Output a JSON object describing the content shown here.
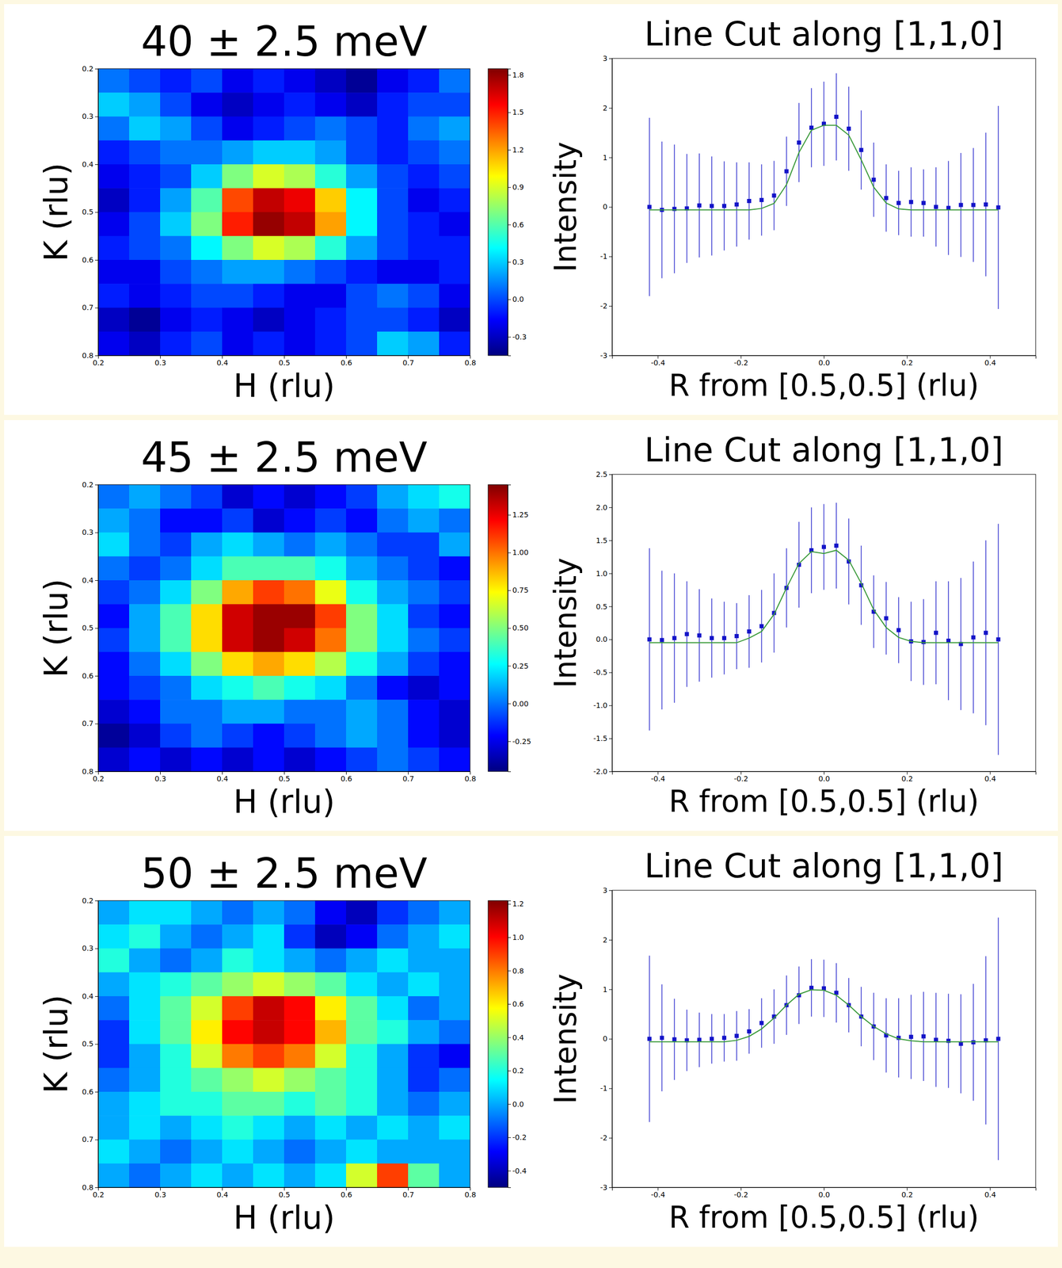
{
  "chart_data": [
    {
      "type": "heatmap",
      "title": "40 ± 2.5 meV",
      "x_label": "H (rlu)",
      "y_label": "K (rlu)",
      "x": [
        0.225,
        0.275,
        0.325,
        0.375,
        0.425,
        0.475,
        0.525,
        0.575,
        0.625,
        0.675,
        0.725,
        0.775
      ],
      "y": [
        0.225,
        0.275,
        0.325,
        0.375,
        0.425,
        0.475,
        0.525,
        0.575,
        0.625,
        0.675,
        0.725,
        0.775
      ],
      "z": [
        [
          0.1,
          0.0,
          -0.1,
          0.0,
          -0.2,
          -0.1,
          -0.2,
          -0.3,
          -0.4,
          -0.2,
          -0.1,
          0.1
        ],
        [
          0.3,
          0.2,
          0.0,
          -0.2,
          -0.3,
          -0.2,
          -0.1,
          -0.2,
          -0.3,
          -0.1,
          0.0,
          0.0
        ],
        [
          0.1,
          0.3,
          0.2,
          0.0,
          -0.2,
          -0.1,
          0.0,
          0.1,
          0.0,
          -0.1,
          0.1,
          0.2
        ],
        [
          -0.1,
          0.0,
          0.1,
          0.1,
          0.2,
          0.3,
          0.3,
          0.2,
          0.0,
          -0.1,
          0.0,
          0.1
        ],
        [
          -0.2,
          -0.1,
          0.0,
          0.3,
          0.7,
          0.9,
          0.8,
          0.5,
          0.2,
          0.0,
          -0.1,
          0.0
        ],
        [
          -0.3,
          -0.1,
          0.2,
          0.6,
          1.4,
          1.7,
          1.6,
          1.1,
          0.4,
          0.0,
          -0.2,
          -0.1
        ],
        [
          -0.2,
          0.0,
          0.3,
          0.7,
          1.5,
          1.8,
          1.7,
          1.2,
          0.4,
          0.0,
          -0.1,
          -0.2
        ],
        [
          -0.1,
          0.0,
          0.1,
          0.4,
          0.7,
          0.9,
          0.8,
          0.5,
          0.2,
          0.0,
          -0.1,
          -0.1
        ],
        [
          -0.2,
          -0.2,
          0.0,
          0.1,
          0.2,
          0.2,
          0.1,
          0.0,
          -0.1,
          -0.2,
          -0.2,
          -0.1
        ],
        [
          -0.1,
          -0.2,
          -0.1,
          0.0,
          0.0,
          -0.1,
          -0.2,
          -0.2,
          0.0,
          0.1,
          0.0,
          -0.2
        ],
        [
          -0.3,
          -0.4,
          -0.2,
          -0.1,
          -0.2,
          -0.3,
          -0.2,
          -0.1,
          0.0,
          0.0,
          -0.1,
          -0.3
        ],
        [
          -0.2,
          -0.3,
          -0.1,
          0.0,
          -0.2,
          -0.1,
          -0.2,
          -0.1,
          0.0,
          0.3,
          0.2,
          -0.1
        ]
      ],
      "xlim": [
        0.2,
        0.8
      ],
      "ylim": [
        0.8,
        0.2
      ],
      "xticks": [
        0.2,
        0.3,
        0.4,
        0.5,
        0.6,
        0.7,
        0.8
      ],
      "yticks": [
        0.2,
        0.3,
        0.4,
        0.5,
        0.6,
        0.7,
        0.8
      ],
      "colorbar_range": [
        -0.45,
        1.85
      ],
      "colorbar_ticks": [
        -0.3,
        {
          "value": 0,
          "label": "0.0"
        },
        0.3,
        0.6,
        0.9,
        1.2,
        1.5,
        1.8
      ]
    },
    {
      "type": "line",
      "title": "Line Cut along [1,1,0]",
      "x_label": "R from [0.5,0.5] (rlu)",
      "y_label": "Intensity",
      "x": [
        -0.42,
        -0.39,
        -0.36,
        -0.33,
        -0.3,
        -0.27,
        -0.24,
        -0.21,
        -0.18,
        -0.15,
        -0.12,
        -0.09,
        -0.06,
        -0.03,
        0,
        0.03,
        0.06,
        0.09,
        0.12,
        0.15,
        0.18,
        0.21,
        0.24,
        0.27,
        0.3,
        0.33,
        0.36,
        0.39,
        0.42
      ],
      "series": [
        {
          "type": "scatter",
          "marker": "square",
          "color": "#1414c8",
          "values": [
            0,
            -0.06,
            -0.04,
            -0.03,
            0.03,
            0.02,
            0.02,
            0.05,
            0.12,
            0.14,
            0.23,
            0.72,
            1.3,
            1.6,
            1.68,
            1.82,
            1.58,
            1.15,
            0.55,
            0.18,
            0.08,
            0.1,
            0.08,
            0,
            -0.02,
            0.04,
            0.04,
            0.05,
            -0.01
          ],
          "errors": [
            1.8,
            1.38,
            1.3,
            1.1,
            1.05,
            1.0,
            0.9,
            0.85,
            0.78,
            0.72,
            0.7,
            0.7,
            0.8,
            0.8,
            0.85,
            0.88,
            0.85,
            0.8,
            0.75,
            0.68,
            0.65,
            0.7,
            0.68,
            0.8,
            0.95,
            1.05,
            1.15,
            1.45,
            2.05
          ]
        },
        {
          "type": "line",
          "color": "#3a9a3a",
          "values": [
            -0.06,
            -0.06,
            -0.06,
            -0.06,
            -0.06,
            -0.06,
            -0.06,
            -0.06,
            -0.06,
            -0.03,
            0.07,
            0.45,
            1.1,
            1.55,
            1.65,
            1.65,
            1.45,
            0.95,
            0.4,
            0.08,
            -0.04,
            -0.06,
            -0.06,
            -0.06,
            -0.06,
            -0.06,
            -0.06,
            -0.06,
            -0.06
          ]
        }
      ],
      "xlim": [
        -0.51,
        0.51
      ],
      "ylim": [
        -3,
        3
      ],
      "xticks": [
        -0.4,
        -0.2,
        {
          "value": 0,
          "label": "0.0"
        },
        0.2,
        0.4
      ],
      "yticks": [
        -3,
        -2,
        -1,
        0,
        1,
        2,
        3
      ]
    },
    {
      "type": "heatmap",
      "title": "45 ± 2.5 meV",
      "x_label": "H (rlu)",
      "y_label": "K (rlu)",
      "x": [
        0.225,
        0.275,
        0.325,
        0.375,
        0.425,
        0.475,
        0.525,
        0.575,
        0.625,
        0.675,
        0.725,
        0.775
      ],
      "y": [
        0.225,
        0.275,
        0.325,
        0.375,
        0.425,
        0.475,
        0.525,
        0.575,
        0.625,
        0.675,
        0.725,
        0.775
      ],
      "z": [
        [
          0.0,
          0.1,
          0.0,
          -0.1,
          -0.3,
          -0.2,
          -0.3,
          -0.2,
          -0.1,
          0.1,
          0.2,
          0.3
        ],
        [
          0.1,
          0.0,
          -0.2,
          -0.2,
          -0.1,
          -0.3,
          -0.2,
          -0.1,
          -0.2,
          0.0,
          0.1,
          0.0
        ],
        [
          0.2,
          0.0,
          -0.1,
          0.1,
          0.2,
          0.1,
          0.0,
          0.1,
          0.0,
          -0.1,
          -0.1,
          0.1
        ],
        [
          0.0,
          -0.1,
          0.0,
          0.2,
          0.4,
          0.4,
          0.4,
          0.3,
          0.1,
          0.0,
          -0.1,
          -0.2
        ],
        [
          -0.1,
          0.0,
          0.2,
          0.5,
          0.9,
          1.1,
          1.0,
          0.7,
          0.3,
          0.1,
          0.0,
          -0.1
        ],
        [
          -0.2,
          0.1,
          0.4,
          0.8,
          1.3,
          1.4,
          1.4,
          1.1,
          0.5,
          0.2,
          -0.1,
          -0.2
        ],
        [
          -0.1,
          0.1,
          0.4,
          0.8,
          1.3,
          1.4,
          1.3,
          1.0,
          0.5,
          0.2,
          0.0,
          -0.1
        ],
        [
          -0.2,
          0.0,
          0.2,
          0.5,
          0.8,
          0.9,
          0.8,
          0.6,
          0.3,
          0.1,
          -0.1,
          -0.2
        ],
        [
          -0.2,
          -0.1,
          0.0,
          0.2,
          0.3,
          0.4,
          0.3,
          0.2,
          0.0,
          -0.2,
          -0.3,
          -0.2
        ],
        [
          -0.3,
          -0.2,
          0.0,
          0.0,
          0.1,
          0.1,
          0.0,
          0.0,
          0.1,
          0.0,
          -0.2,
          -0.3
        ],
        [
          -0.4,
          -0.3,
          -0.1,
          0.0,
          -0.1,
          -0.2,
          -0.1,
          0.0,
          0.1,
          0.0,
          -0.2,
          -0.3
        ],
        [
          -0.3,
          -0.2,
          -0.3,
          -0.2,
          -0.3,
          -0.2,
          -0.3,
          -0.2,
          -0.1,
          0.0,
          -0.1,
          -0.2
        ]
      ],
      "xlim": [
        0.2,
        0.8
      ],
      "ylim": [
        0.8,
        0.2
      ],
      "xticks": [
        0.2,
        0.3,
        0.4,
        0.5,
        0.6,
        0.7,
        0.8
      ],
      "yticks": [
        0.2,
        0.3,
        0.4,
        0.5,
        0.6,
        0.7,
        0.8
      ],
      "colorbar_range": [
        -0.45,
        1.45
      ],
      "colorbar_ticks": [
        -0.25,
        {
          "value": 0,
          "label": "0.00"
        },
        0.25,
        {
          "value": 0.5,
          "label": "0.50"
        },
        0.75,
        {
          "value": 1,
          "label": "1.00"
        },
        1.25
      ]
    },
    {
      "type": "line",
      "title": "Line Cut along [1,1,0]",
      "x_label": "R from [0.5,0.5] (rlu)",
      "y_label": "Intensity",
      "x": [
        -0.42,
        -0.39,
        -0.36,
        -0.33,
        -0.3,
        -0.27,
        -0.24,
        -0.21,
        -0.18,
        -0.15,
        -0.12,
        -0.09,
        -0.06,
        -0.03,
        0,
        0.03,
        0.06,
        0.09,
        0.12,
        0.15,
        0.18,
        0.21,
        0.24,
        0.27,
        0.3,
        0.33,
        0.36,
        0.39,
        0.42
      ],
      "series": [
        {
          "type": "scatter",
          "marker": "square",
          "color": "#1414c8",
          "values": [
            0,
            -0.01,
            0.02,
            0.08,
            0.06,
            0.02,
            0.02,
            0.05,
            0.12,
            0.2,
            0.4,
            0.78,
            1.13,
            1.35,
            1.4,
            1.42,
            1.18,
            0.82,
            0.42,
            0.32,
            0.14,
            -0.03,
            -0.04,
            0.1,
            -0.02,
            -0.07,
            0.03,
            0.1,
            0
          ],
          "errors": [
            1.38,
            1.05,
            0.98,
            0.8,
            0.7,
            0.6,
            0.55,
            0.5,
            0.55,
            0.55,
            0.6,
            0.6,
            0.65,
            0.65,
            0.65,
            0.65,
            0.65,
            0.6,
            0.55,
            0.55,
            0.5,
            0.6,
            0.65,
            0.78,
            0.9,
            1.0,
            1.15,
            1.4,
            1.75
          ]
        },
        {
          "type": "line",
          "color": "#3a9a3a",
          "values": [
            -0.05,
            -0.05,
            -0.05,
            -0.05,
            -0.05,
            -0.05,
            -0.05,
            -0.05,
            0.02,
            0.12,
            0.38,
            0.78,
            1.15,
            1.33,
            1.3,
            1.35,
            1.2,
            0.85,
            0.45,
            0.18,
            0.03,
            -0.03,
            -0.05,
            -0.05,
            -0.05,
            -0.05,
            -0.05,
            -0.05,
            -0.05
          ]
        }
      ],
      "xlim": [
        -0.51,
        0.51
      ],
      "ylim": [
        -2,
        2.5
      ],
      "xticks": [
        -0.4,
        -0.2,
        {
          "value": 0,
          "label": "0.0"
        },
        0.2,
        0.4
      ],
      "yticks": [
        {
          "value": -2,
          "label": "-2.0"
        },
        -1.5,
        {
          "value": -1,
          "label": "-1.0"
        },
        -0.5,
        {
          "value": 0,
          "label": "0.0"
        },
        0.5,
        {
          "value": 1,
          "label": "1.0"
        },
        1.5,
        {
          "value": 2,
          "label": "2.0"
        },
        2.5
      ]
    },
    {
      "type": "heatmap",
      "title": "50 ± 2.5 meV",
      "x_label": "H (rlu)",
      "y_label": "K (rlu)",
      "x": [
        0.225,
        0.275,
        0.325,
        0.375,
        0.425,
        0.475,
        0.525,
        0.575,
        0.625,
        0.675,
        0.725,
        0.775
      ],
      "y": [
        0.225,
        0.275,
        0.325,
        0.375,
        0.425,
        0.475,
        0.525,
        0.575,
        0.625,
        0.675,
        0.725,
        0.775
      ],
      "z": [
        [
          0.0,
          0.1,
          0.1,
          0.0,
          -0.1,
          0.0,
          -0.1,
          -0.3,
          -0.4,
          -0.2,
          -0.1,
          0.0
        ],
        [
          0.1,
          0.2,
          0.0,
          -0.1,
          0.0,
          0.1,
          -0.2,
          -0.4,
          -0.3,
          -0.1,
          0.0,
          0.1
        ],
        [
          0.2,
          0.0,
          -0.1,
          0.0,
          0.2,
          0.1,
          0.0,
          -0.1,
          0.0,
          0.1,
          0.0,
          0.0
        ],
        [
          0.0,
          0.1,
          0.2,
          0.3,
          0.4,
          0.5,
          0.4,
          0.3,
          0.1,
          0.0,
          0.1,
          0.0
        ],
        [
          -0.1,
          0.1,
          0.3,
          0.5,
          0.9,
          1.1,
          1.0,
          0.6,
          0.3,
          0.1,
          -0.1,
          0.0
        ],
        [
          -0.2,
          0.1,
          0.3,
          0.6,
          1.0,
          1.1,
          1.0,
          0.7,
          0.3,
          0.2,
          0.0,
          -0.1
        ],
        [
          -0.2,
          0.0,
          0.2,
          0.5,
          0.8,
          0.9,
          0.8,
          0.5,
          0.2,
          0.0,
          -0.2,
          -0.3
        ],
        [
          -0.1,
          0.0,
          0.2,
          0.3,
          0.4,
          0.5,
          0.4,
          0.3,
          0.2,
          0.0,
          -0.2,
          -0.1
        ],
        [
          0.0,
          0.1,
          0.2,
          0.2,
          0.3,
          0.3,
          0.2,
          0.3,
          0.2,
          0.0,
          -0.1,
          0.0
        ],
        [
          0.0,
          0.1,
          0.0,
          0.1,
          0.2,
          0.1,
          0.0,
          0.1,
          0.0,
          0.1,
          0.0,
          0.1
        ],
        [
          0.1,
          0.0,
          -0.1,
          0.0,
          0.1,
          0.0,
          -0.1,
          0.0,
          0.1,
          0.0,
          0.0,
          0.0
        ],
        [
          0.0,
          -0.1,
          0.0,
          0.1,
          0.0,
          0.1,
          0.0,
          0.1,
          0.5,
          0.9,
          0.3,
          0.0
        ]
      ],
      "xlim": [
        0.2,
        0.8
      ],
      "ylim": [
        0.8,
        0.2
      ],
      "xticks": [
        0.2,
        0.3,
        0.4,
        0.5,
        0.6,
        0.7,
        0.8
      ],
      "yticks": [
        0.2,
        0.3,
        0.4,
        0.5,
        0.6,
        0.7,
        0.8
      ],
      "colorbar_range": [
        -0.5,
        1.22
      ],
      "colorbar_ticks": [
        -0.4,
        -0.2,
        {
          "value": 0,
          "label": "0.0"
        },
        0.2,
        0.4,
        0.6,
        0.8,
        {
          "value": 1,
          "label": "1.0"
        },
        1.2
      ]
    },
    {
      "type": "line",
      "title": "Line Cut along [1,1,0]",
      "x_label": "R from [0.5,0.5] (rlu)",
      "y_label": "Intensity",
      "x": [
        -0.42,
        -0.39,
        -0.36,
        -0.33,
        -0.3,
        -0.27,
        -0.24,
        -0.21,
        -0.18,
        -0.15,
        -0.12,
        -0.09,
        -0.06,
        -0.03,
        0,
        0.03,
        0.06,
        0.09,
        0.12,
        0.15,
        0.18,
        0.21,
        0.24,
        0.27,
        0.3,
        0.33,
        0.36,
        0.39,
        0.42
      ],
      "series": [
        {
          "type": "scatter",
          "marker": "square",
          "color": "#1414c8",
          "values": [
            0,
            0.02,
            -0.01,
            -0.03,
            -0.02,
            0,
            0.02,
            0.06,
            0.15,
            0.32,
            0.45,
            0.68,
            0.88,
            1.03,
            1.02,
            0.93,
            0.68,
            0.45,
            0.25,
            0.07,
            0.02,
            0.04,
            0.05,
            -0.02,
            -0.04,
            -0.1,
            -0.07,
            -0.03,
            0
          ],
          "errors": [
            1.68,
            1.08,
            0.82,
            0.62,
            0.55,
            0.5,
            0.48,
            0.5,
            0.45,
            0.5,
            0.55,
            0.6,
            0.58,
            0.58,
            0.58,
            0.6,
            0.55,
            0.6,
            0.68,
            0.75,
            0.8,
            0.85,
            0.9,
            0.95,
            0.95,
            1.0,
            1.18,
            1.7,
            2.45
          ]
        },
        {
          "type": "line",
          "color": "#3a9a3a",
          "values": [
            -0.06,
            -0.06,
            -0.06,
            -0.06,
            -0.06,
            -0.06,
            -0.06,
            -0.03,
            0.05,
            0.2,
            0.42,
            0.68,
            0.9,
            0.99,
            0.98,
            0.88,
            0.68,
            0.45,
            0.25,
            0.1,
            0.0,
            -0.04,
            -0.06,
            -0.06,
            -0.06,
            -0.06,
            -0.06,
            -0.06,
            -0.06
          ]
        }
      ],
      "xlim": [
        -0.51,
        0.51
      ],
      "ylim": [
        -3,
        3
      ],
      "xticks": [
        -0.4,
        -0.2,
        {
          "value": 0,
          "label": "0.0"
        },
        0.2,
        0.4
      ],
      "yticks": [
        -3,
        -2,
        -1,
        0,
        1,
        2,
        3
      ]
    }
  ]
}
